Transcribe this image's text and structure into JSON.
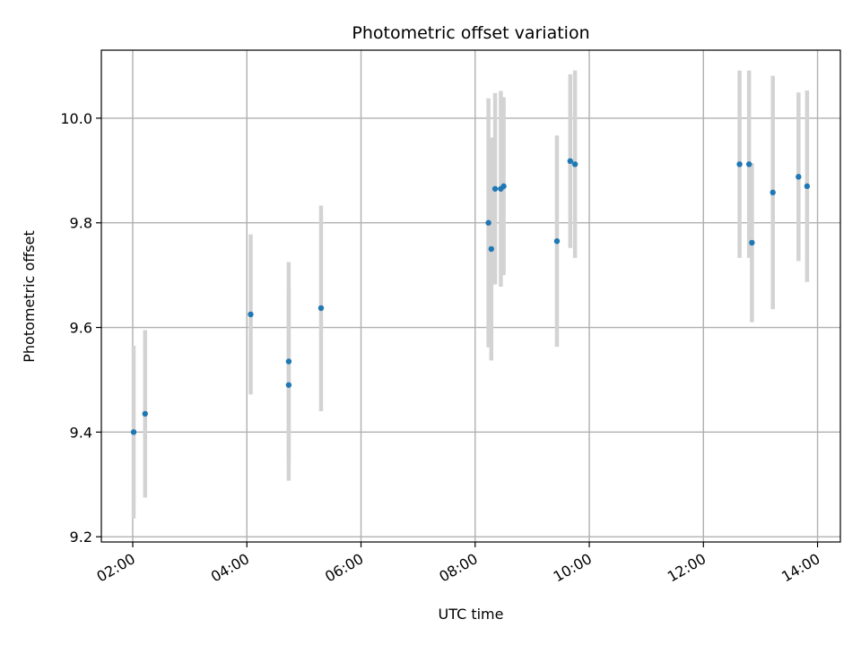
{
  "chart_data": {
    "type": "scatter",
    "title": "Photometric offset variation",
    "xlabel": "UTC time",
    "ylabel": "Photometric offset",
    "grid": true,
    "xlim": [
      "01:27",
      "14:24"
    ],
    "ylim": [
      9.19,
      10.13
    ],
    "x_ticks": [
      "02:00",
      "04:00",
      "06:00",
      "08:00",
      "10:00",
      "12:00",
      "14:00"
    ],
    "y_ticks": [
      "9.2",
      "9.4",
      "9.6",
      "9.8",
      "10.0"
    ],
    "colors": {
      "point": "#1f77b4",
      "errorbar": "#d3d3d3",
      "grid": "#b0b0b0"
    },
    "points": [
      {
        "x": "02:01",
        "y": 9.4,
        "y_low": 9.235,
        "y_high": 9.565
      },
      {
        "x": "02:13",
        "y": 9.435,
        "y_low": 9.275,
        "y_high": 9.595
      },
      {
        "x": "04:04",
        "y": 9.625,
        "y_low": 9.472,
        "y_high": 9.778
      },
      {
        "x": "04:44",
        "y": 9.535,
        "y_low": 9.345,
        "y_high": 9.725
      },
      {
        "x": "04:44",
        "y": 9.49,
        "y_low": 9.307,
        "y_high": 9.675
      },
      {
        "x": "05:18",
        "y": 9.637,
        "y_low": 9.44,
        "y_high": 9.833
      },
      {
        "x": "08:14",
        "y": 9.8,
        "y_low": 9.562,
        "y_high": 10.038
      },
      {
        "x": "08:17",
        "y": 9.75,
        "y_low": 9.537,
        "y_high": 9.963
      },
      {
        "x": "08:21",
        "y": 9.865,
        "y_low": 9.682,
        "y_high": 10.048
      },
      {
        "x": "08:27",
        "y": 9.865,
        "y_low": 9.678,
        "y_high": 10.052
      },
      {
        "x": "08:30",
        "y": 9.87,
        "y_low": 9.7,
        "y_high": 10.04
      },
      {
        "x": "09:26",
        "y": 9.765,
        "y_low": 9.563,
        "y_high": 9.967
      },
      {
        "x": "09:40",
        "y": 9.918,
        "y_low": 9.752,
        "y_high": 10.084
      },
      {
        "x": "09:45",
        "y": 9.912,
        "y_low": 9.733,
        "y_high": 10.091
      },
      {
        "x": "12:38",
        "y": 9.912,
        "y_low": 9.733,
        "y_high": 10.091
      },
      {
        "x": "12:48",
        "y": 9.912,
        "y_low": 9.733,
        "y_high": 10.091
      },
      {
        "x": "12:51",
        "y": 9.762,
        "y_low": 9.61,
        "y_high": 9.914
      },
      {
        "x": "13:13",
        "y": 9.858,
        "y_low": 9.635,
        "y_high": 10.081
      },
      {
        "x": "13:40",
        "y": 9.888,
        "y_low": 9.727,
        "y_high": 10.049
      },
      {
        "x": "13:49",
        "y": 9.87,
        "y_low": 9.687,
        "y_high": 10.053
      }
    ]
  }
}
